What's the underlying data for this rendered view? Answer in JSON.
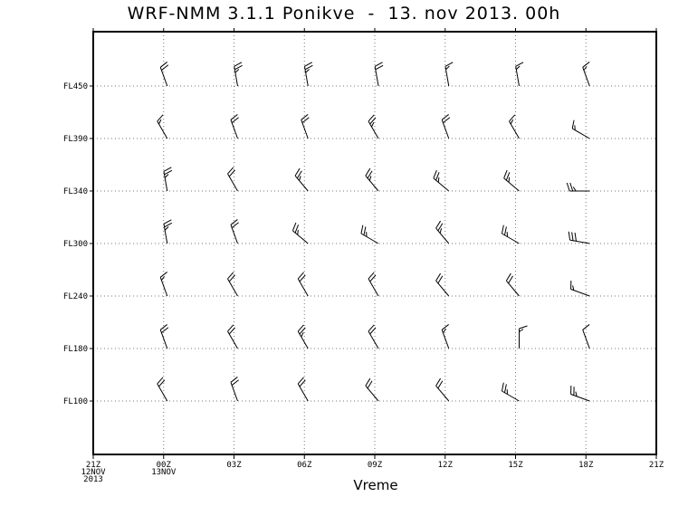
{
  "chart_data": {
    "type": "wind-barb",
    "title": "WRF-NMM 3.1.1 Ponikve  -  13. nov 2013. 00h",
    "xlabel": "Vreme",
    "ylabel": "",
    "x_ticks": [
      [
        "21Z",
        "12NOV",
        "2013"
      ],
      [
        "00Z",
        "13NOV"
      ],
      [
        "03Z"
      ],
      [
        "06Z"
      ],
      [
        "09Z"
      ],
      [
        "12Z"
      ],
      [
        "15Z"
      ],
      [
        "18Z"
      ],
      [
        "21Z"
      ]
    ],
    "y_levels": [
      "FL450",
      "FL390",
      "FL340",
      "FL300",
      "FL240",
      "FL180",
      "FL100"
    ],
    "grid": true,
    "times": [
      "00Z",
      "03Z",
      "06Z",
      "09Z",
      "12Z",
      "15Z",
      "18Z"
    ],
    "barbs": [
      [
        [
          340,
          20
        ],
        [
          350,
          25
        ],
        [
          350,
          25
        ],
        [
          350,
          20
        ],
        [
          350,
          15
        ],
        [
          350,
          15
        ],
        [
          340,
          15
        ]
      ],
      [
        [
          330,
          15
        ],
        [
          340,
          20
        ],
        [
          340,
          20
        ],
        [
          330,
          25
        ],
        [
          340,
          20
        ],
        [
          330,
          15
        ],
        [
          300,
          15
        ]
      ],
      [
        [
          350,
          25
        ],
        [
          330,
          20
        ],
        [
          320,
          25
        ],
        [
          320,
          25
        ],
        [
          310,
          25
        ],
        [
          310,
          25
        ],
        [
          270,
          25
        ]
      ],
      [
        [
          350,
          25
        ],
        [
          340,
          20
        ],
        [
          310,
          25
        ],
        [
          300,
          25
        ],
        [
          320,
          25
        ],
        [
          300,
          25
        ],
        [
          280,
          30
        ]
      ],
      [
        [
          340,
          15
        ],
        [
          330,
          20
        ],
        [
          330,
          20
        ],
        [
          330,
          20
        ],
        [
          320,
          20
        ],
        [
          320,
          20
        ],
        [
          290,
          15
        ]
      ],
      [
        [
          340,
          20
        ],
        [
          330,
          20
        ],
        [
          330,
          25
        ],
        [
          330,
          20
        ],
        [
          340,
          15
        ],
        [
          360,
          15
        ],
        [
          340,
          10
        ]
      ],
      [
        [
          330,
          20
        ],
        [
          340,
          20
        ],
        [
          330,
          20
        ],
        [
          320,
          20
        ],
        [
          320,
          20
        ],
        [
          300,
          25
        ],
        [
          290,
          25
        ]
      ]
    ]
  }
}
